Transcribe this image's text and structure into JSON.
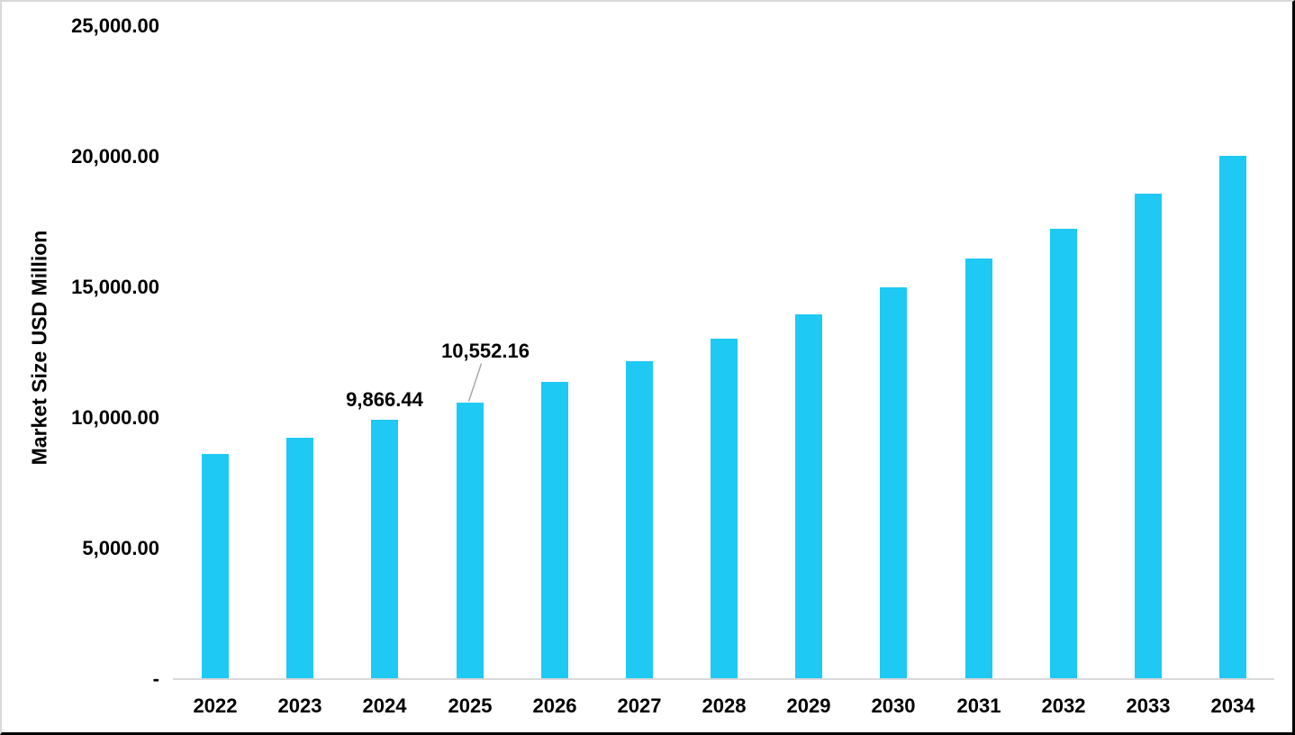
{
  "chart_data": {
    "type": "bar",
    "title": "",
    "xlabel": "",
    "ylabel": "Market Size USD Million",
    "categories": [
      "2022",
      "2023",
      "2024",
      "2025",
      "2026",
      "2027",
      "2028",
      "2029",
      "2030",
      "2031",
      "2032",
      "2033",
      "2034"
    ],
    "values": [
      8580,
      9210,
      9866.44,
      10552.16,
      11340,
      12110,
      12970,
      13910,
      14930,
      16040,
      17190,
      18510,
      19960
    ],
    "ylim": [
      0,
      25000
    ],
    "ytick_step": 5000,
    "ytick_labels_bottom_to_top": [
      "-",
      "5,000.00",
      "10,000.00",
      "15,000.00",
      "20,000.00",
      "25,000.00"
    ],
    "grid": false,
    "legend": "none",
    "data_labels": [
      {
        "category": "2024",
        "value": 9866.44,
        "text": "9,866.44",
        "placement": "above"
      },
      {
        "category": "2025",
        "value": 10552.16,
        "text": "10,552.16",
        "placement": "callout"
      }
    ],
    "colors": {
      "bar": "#1EC9F3",
      "axis_line": "#D9D9D9",
      "leader_line": "#A6A6A6",
      "text": "#000000",
      "background": "#FFFFFF"
    }
  }
}
